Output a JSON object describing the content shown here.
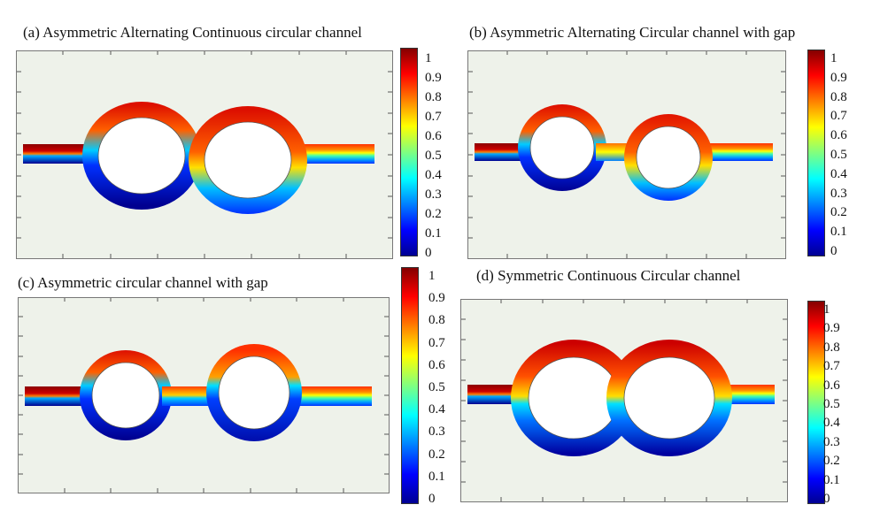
{
  "panels": [
    {
      "id": "a",
      "title": "(a) Asymmetric  Alternating  Continuous circular channel"
    },
    {
      "id": "b",
      "title": "(b) Asymmetric  Alternating  Circular channel with gap"
    },
    {
      "id": "c",
      "title": "(c)  Asymmetric  circular channel with gap"
    },
    {
      "id": "d",
      "title": "(d) Symmetric Continuous Circular channel"
    }
  ],
  "colorbar": {
    "ticks": [
      "1",
      "0.9",
      "0.8",
      "0.7",
      "0.6",
      "0.5",
      "0.4",
      "0.3",
      "0.2",
      "0.1",
      "0"
    ],
    "colors": [
      "#00008f",
      "#0000ff",
      "#0080ff",
      "#00ffff",
      "#80ff80",
      "#ffff00",
      "#ff8000",
      "#ff0000",
      "#800000"
    ]
  }
}
